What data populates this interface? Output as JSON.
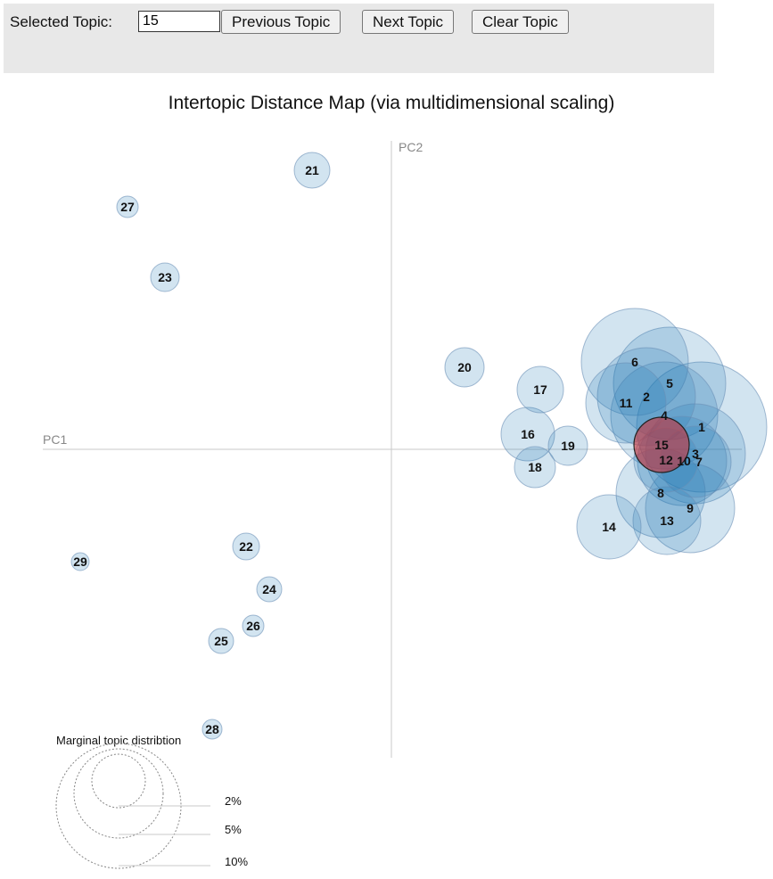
{
  "toolbar": {
    "selected_label": "Selected Topic:",
    "selected_value": "15",
    "prev_label": "Previous Topic",
    "next_label": "Next Topic",
    "clear_label": "Clear Topic"
  },
  "map": {
    "title": "Intertopic Distance Map (via multidimensional scaling)",
    "x_axis_label": "PC1",
    "y_axis_label": "PC2",
    "selected_topic": "15",
    "colors": {
      "topic_fill": "#1f77b4",
      "selected_fill": "#d62728",
      "panel": "#e8e8e8"
    }
  },
  "legend": {
    "title": "Marginal topic distribtion",
    "entries": [
      "2%",
      "5%",
      "10%"
    ]
  },
  "topics": [
    {
      "id": "21",
      "selected": false
    },
    {
      "id": "27",
      "selected": false
    },
    {
      "id": "23",
      "selected": false
    },
    {
      "id": "20",
      "selected": false
    },
    {
      "id": "17",
      "selected": false
    },
    {
      "id": "16",
      "selected": false
    },
    {
      "id": "19",
      "selected": false
    },
    {
      "id": "18",
      "selected": false
    },
    {
      "id": "6",
      "selected": false
    },
    {
      "id": "5",
      "selected": false
    },
    {
      "id": "2",
      "selected": false
    },
    {
      "id": "11",
      "selected": false
    },
    {
      "id": "4",
      "selected": false
    },
    {
      "id": "1",
      "selected": false
    },
    {
      "id": "15",
      "selected": true
    },
    {
      "id": "3",
      "selected": false
    },
    {
      "id": "12",
      "selected": false
    },
    {
      "id": "10",
      "selected": false
    },
    {
      "id": "7",
      "selected": false
    },
    {
      "id": "8",
      "selected": false
    },
    {
      "id": "9",
      "selected": false
    },
    {
      "id": "13",
      "selected": false
    },
    {
      "id": "14",
      "selected": false
    },
    {
      "id": "22",
      "selected": false
    },
    {
      "id": "29",
      "selected": false
    },
    {
      "id": "24",
      "selected": false
    },
    {
      "id": "26",
      "selected": false
    },
    {
      "id": "25",
      "selected": false
    },
    {
      "id": "28",
      "selected": false
    }
  ]
}
